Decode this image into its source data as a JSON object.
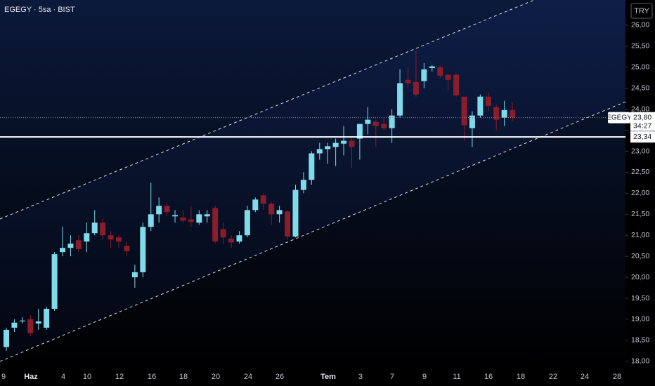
{
  "chart_data": {
    "type": "candlestick",
    "title": "EGEGY · 5sa · BIST",
    "symbol": "EGEGY",
    "currency": "TRY",
    "countdown": "34:27",
    "last_price": {
      "value": 23.8,
      "label": "23,80"
    },
    "price_line": {
      "value": 23.34,
      "label": "23,34"
    },
    "up_color": "#7fdbea",
    "down_color": "#8a1c2b",
    "x_labels": [
      "9",
      "Haz",
      "4",
      "10",
      "12",
      "16",
      "18",
      "20",
      "24",
      "26",
      "Tem",
      "3",
      "7",
      "9",
      "11",
      "16",
      "18",
      "22",
      "24",
      "28"
    ],
    "ylim": [
      17.88,
      26.6
    ],
    "yticks": [
      {
        "value": 18,
        "label": "18,00"
      },
      {
        "value": 18.5,
        "label": "18,50"
      },
      {
        "value": 19,
        "label": "19,00"
      },
      {
        "value": 19.5,
        "label": "19,50"
      },
      {
        "value": 20,
        "label": "20,00"
      },
      {
        "value": 20.5,
        "label": "20,50"
      },
      {
        "value": 21,
        "label": "21,00"
      },
      {
        "value": 21.5,
        "label": "21,50"
      },
      {
        "value": 22,
        "label": "22,00"
      },
      {
        "value": 22.5,
        "label": "22,50"
      },
      {
        "value": 23,
        "label": "23,00"
      },
      {
        "value": 23.5,
        "label": "23,50"
      },
      {
        "value": 24,
        "label": "24,00"
      },
      {
        "value": 24.5,
        "label": "24,50"
      },
      {
        "value": 25,
        "label": "25,00"
      },
      {
        "value": 25.5,
        "label": "25,50"
      },
      {
        "value": 26,
        "label": "26,00"
      }
    ],
    "open": [
      18.34,
      18.8,
      18.95,
      19.0,
      18.9,
      18.8,
      19.25,
      20.6,
      20.7,
      20.88,
      20.85,
      21.05,
      21.3,
      21.0,
      20.95,
      20.75,
      20.0,
      20.12,
      21.2,
      21.5,
      21.7,
      21.45,
      21.42,
      21.38,
      21.3,
      21.45,
      21.65,
      21.15,
      20.92,
      20.85,
      21.0,
      21.6,
      21.95,
      21.75,
      21.5,
      21.57,
      20.97,
      22.08,
      22.32,
      22.95,
      23.05,
      23.1,
      23.18,
      23.25,
      23.3,
      23.65,
      23.7,
      23.65,
      23.55,
      23.85,
      24.7,
      24.65,
      24.67,
      24.98,
      25.0,
      24.82,
      24.82,
      24.3,
      23.55,
      23.85,
      24.3,
      24.05,
      23.8,
      23.98
    ],
    "high": [
      18.8,
      19.0,
      19.05,
      19.1,
      19.25,
      19.3,
      20.6,
      21.2,
      21.0,
      21.0,
      21.3,
      21.6,
      21.4,
      21.1,
      21.0,
      20.85,
      20.3,
      21.3,
      22.25,
      21.9,
      21.75,
      21.6,
      21.6,
      21.7,
      21.6,
      21.6,
      21.7,
      21.3,
      21.0,
      21.1,
      21.7,
      21.9,
      22.0,
      21.8,
      21.7,
      21.6,
      22.2,
      22.5,
      23.0,
      23.2,
      23.2,
      23.3,
      23.6,
      23.3,
      23.65,
      24.05,
      23.75,
      23.8,
      24.0,
      24.95,
      25.0,
      25.4,
      25.1,
      25.05,
      25.05,
      24.82,
      24.85,
      24.3,
      23.95,
      24.35,
      24.4,
      24.1,
      24.2,
      24.15
    ],
    "low": [
      18.25,
      18.7,
      18.9,
      18.6,
      18.75,
      18.75,
      19.2,
      20.5,
      20.5,
      20.6,
      20.6,
      21.0,
      20.9,
      20.7,
      20.7,
      20.5,
      19.75,
      20.0,
      21.1,
      21.3,
      21.45,
      21.3,
      21.3,
      21.2,
      21.25,
      21.3,
      20.8,
      20.8,
      20.7,
      20.8,
      20.95,
      21.55,
      21.6,
      21.25,
      21.3,
      20.9,
      20.95,
      22.0,
      22.2,
      22.8,
      22.7,
      22.65,
      22.9,
      22.6,
      22.8,
      23.4,
      23.1,
      23.5,
      23.2,
      23.8,
      24.5,
      24.3,
      24.5,
      24.9,
      24.75,
      24.45,
      24.3,
      23.25,
      23.1,
      23.8,
      23.95,
      23.5,
      23.6,
      23.72
    ],
    "close": [
      18.75,
      18.92,
      18.97,
      18.67,
      18.95,
      19.25,
      20.55,
      20.7,
      20.8,
      20.67,
      21.05,
      21.3,
      21.0,
      20.9,
      20.85,
      20.62,
      20.12,
      21.2,
      21.5,
      21.7,
      21.55,
      21.48,
      21.35,
      21.32,
      21.5,
      21.5,
      20.85,
      20.95,
      20.83,
      21.0,
      21.6,
      21.85,
      21.75,
      21.5,
      21.6,
      20.97,
      22.08,
      22.32,
      22.95,
      23.05,
      23.12,
      23.2,
      23.25,
      23.1,
      23.65,
      23.75,
      23.6,
      23.55,
      23.85,
      24.62,
      24.62,
      24.35,
      24.95,
      25.02,
      24.8,
      24.7,
      24.33,
      23.62,
      23.85,
      24.3,
      24.08,
      23.75,
      23.98,
      23.8
    ]
  }
}
